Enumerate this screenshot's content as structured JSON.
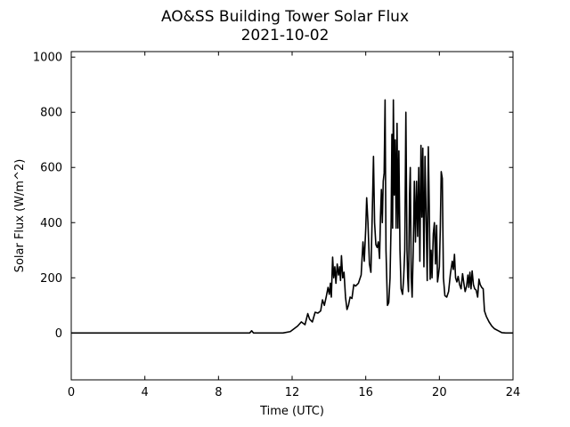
{
  "chart_data": {
    "type": "line",
    "title": "AO&SS Building Tower Solar Flux",
    "subtitle": "2021-10-02",
    "xlabel": "Time (UTC)",
    "ylabel": "Solar Flux (W/m^2)",
    "xlim": [
      0,
      24
    ],
    "ylim": [
      -170,
      1020
    ],
    "xticks": [
      0,
      4,
      8,
      12,
      16,
      20,
      24
    ],
    "xtick_labels": [
      "0",
      "4",
      "8",
      "12",
      "16",
      "20",
      "24"
    ],
    "yticks": [
      0,
      200,
      400,
      600,
      800,
      1000
    ],
    "ytick_labels": [
      "0",
      "200",
      "400",
      "600",
      "800",
      "1000"
    ],
    "grid": false,
    "legend": false,
    "line_color": "#000000",
    "series": [
      {
        "points": [
          [
            0.0,
            0
          ],
          [
            9.7,
            0
          ],
          [
            9.8,
            8
          ],
          [
            9.9,
            0
          ],
          [
            11.5,
            0
          ],
          [
            11.9,
            5
          ],
          [
            12.1,
            15
          ],
          [
            12.3,
            25
          ],
          [
            12.5,
            40
          ],
          [
            12.7,
            30
          ],
          [
            12.85,
            70
          ],
          [
            12.95,
            50
          ],
          [
            13.1,
            40
          ],
          [
            13.25,
            75
          ],
          [
            13.4,
            72
          ],
          [
            13.55,
            80
          ],
          [
            13.65,
            120
          ],
          [
            13.75,
            100
          ],
          [
            13.85,
            130
          ],
          [
            13.95,
            165
          ],
          [
            14.02,
            140
          ],
          [
            14.08,
            180
          ],
          [
            14.13,
            130
          ],
          [
            14.2,
            275
          ],
          [
            14.26,
            200
          ],
          [
            14.32,
            240
          ],
          [
            14.38,
            180
          ],
          [
            14.45,
            250
          ],
          [
            14.52,
            210
          ],
          [
            14.58,
            240
          ],
          [
            14.63,
            190
          ],
          [
            14.68,
            280
          ],
          [
            14.75,
            200
          ],
          [
            14.82,
            220
          ],
          [
            14.9,
            130
          ],
          [
            14.98,
            85
          ],
          [
            15.06,
            100
          ],
          [
            15.15,
            130
          ],
          [
            15.25,
            125
          ],
          [
            15.35,
            175
          ],
          [
            15.45,
            170
          ],
          [
            15.6,
            180
          ],
          [
            15.75,
            210
          ],
          [
            15.85,
            330
          ],
          [
            15.92,
            260
          ],
          [
            16.0,
            380
          ],
          [
            16.05,
            490
          ],
          [
            16.12,
            400
          ],
          [
            16.2,
            250
          ],
          [
            16.28,
            220
          ],
          [
            16.35,
            420
          ],
          [
            16.42,
            640
          ],
          [
            16.48,
            400
          ],
          [
            16.55,
            320
          ],
          [
            16.62,
            310
          ],
          [
            16.68,
            330
          ],
          [
            16.75,
            270
          ],
          [
            16.8,
            420
          ],
          [
            16.85,
            520
          ],
          [
            16.9,
            400
          ],
          [
            16.95,
            550
          ],
          [
            17.0,
            580
          ],
          [
            17.05,
            845
          ],
          [
            17.1,
            300
          ],
          [
            17.18,
            100
          ],
          [
            17.25,
            110
          ],
          [
            17.32,
            200
          ],
          [
            17.38,
            410
          ],
          [
            17.42,
            720
          ],
          [
            17.46,
            380
          ],
          [
            17.5,
            845
          ],
          [
            17.55,
            500
          ],
          [
            17.6,
            700
          ],
          [
            17.65,
            380
          ],
          [
            17.7,
            760
          ],
          [
            17.75,
            380
          ],
          [
            17.8,
            660
          ],
          [
            17.86,
            300
          ],
          [
            17.92,
            160
          ],
          [
            18.0,
            140
          ],
          [
            18.06,
            200
          ],
          [
            18.12,
            300
          ],
          [
            18.18,
            800
          ],
          [
            18.24,
            300
          ],
          [
            18.28,
            200
          ],
          [
            18.32,
            150
          ],
          [
            18.38,
            500
          ],
          [
            18.42,
            600
          ],
          [
            18.47,
            200
          ],
          [
            18.52,
            130
          ],
          [
            18.58,
            300
          ],
          [
            18.64,
            550
          ],
          [
            18.7,
            330
          ],
          [
            18.76,
            550
          ],
          [
            18.82,
            350
          ],
          [
            18.88,
            600
          ],
          [
            18.94,
            260
          ],
          [
            19.0,
            680
          ],
          [
            19.05,
            420
          ],
          [
            19.1,
            670
          ],
          [
            19.16,
            240
          ],
          [
            19.22,
            640
          ],
          [
            19.28,
            420
          ],
          [
            19.34,
            190
          ],
          [
            19.4,
            675
          ],
          [
            19.45,
            460
          ],
          [
            19.5,
            195
          ],
          [
            19.55,
            300
          ],
          [
            19.6,
            200
          ],
          [
            19.67,
            360
          ],
          [
            19.73,
            400
          ],
          [
            19.79,
            250
          ],
          [
            19.85,
            390
          ],
          [
            19.9,
            185
          ],
          [
            19.95,
            210
          ],
          [
            20.0,
            240
          ],
          [
            20.05,
            380
          ],
          [
            20.1,
            585
          ],
          [
            20.16,
            560
          ],
          [
            20.22,
            200
          ],
          [
            20.3,
            135
          ],
          [
            20.4,
            130
          ],
          [
            20.5,
            150
          ],
          [
            20.6,
            215
          ],
          [
            20.7,
            260
          ],
          [
            20.76,
            230
          ],
          [
            20.82,
            285
          ],
          [
            20.88,
            200
          ],
          [
            20.95,
            185
          ],
          [
            21.02,
            205
          ],
          [
            21.1,
            175
          ],
          [
            21.18,
            160
          ],
          [
            21.26,
            215
          ],
          [
            21.33,
            180
          ],
          [
            21.4,
            150
          ],
          [
            21.48,
            170
          ],
          [
            21.55,
            210
          ],
          [
            21.6,
            165
          ],
          [
            21.66,
            220
          ],
          [
            21.72,
            160
          ],
          [
            21.78,
            225
          ],
          [
            21.85,
            175
          ],
          [
            21.92,
            160
          ],
          [
            22.0,
            155
          ],
          [
            22.08,
            130
          ],
          [
            22.15,
            195
          ],
          [
            22.22,
            175
          ],
          [
            22.3,
            165
          ],
          [
            22.38,
            160
          ],
          [
            22.45,
            80
          ],
          [
            22.55,
            60
          ],
          [
            22.7,
            40
          ],
          [
            22.85,
            25
          ],
          [
            23.0,
            15
          ],
          [
            23.2,
            8
          ],
          [
            23.4,
            1
          ],
          [
            23.6,
            0
          ],
          [
            24.0,
            0
          ]
        ]
      }
    ]
  }
}
